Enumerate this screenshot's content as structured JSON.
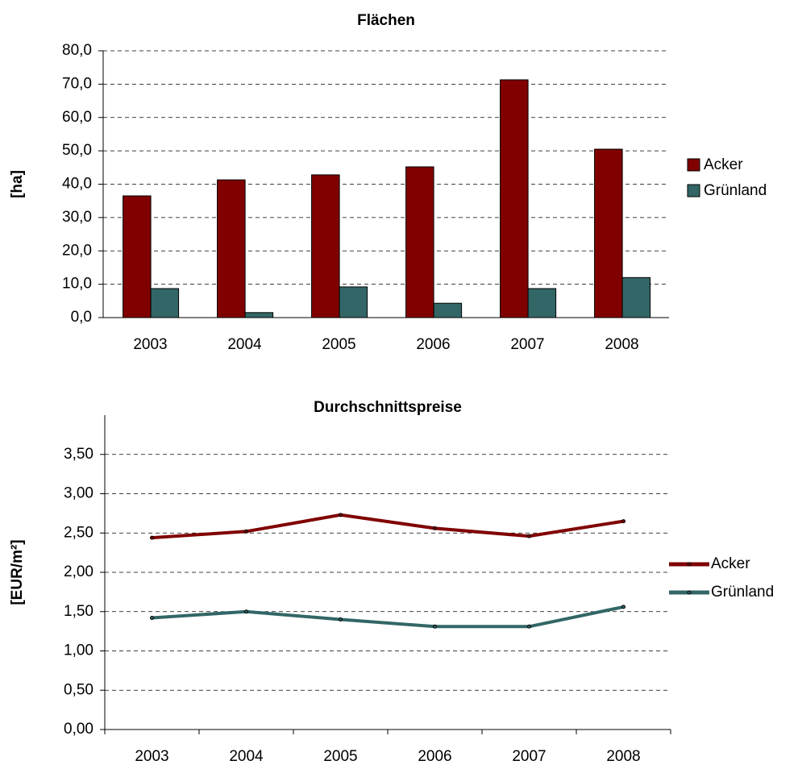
{
  "chart_data": [
    {
      "type": "bar",
      "title": "Flächen",
      "ylabel": "[ha]",
      "categories": [
        "2003",
        "2004",
        "2005",
        "2006",
        "2007",
        "2008"
      ],
      "series": [
        {
          "name": "Acker",
          "color": "#800000",
          "values": [
            36.5,
            41.3,
            42.8,
            45.2,
            71.3,
            50.5
          ]
        },
        {
          "name": "Grünland",
          "color": "#336666",
          "values": [
            8.7,
            1.5,
            9.2,
            4.3,
            8.7,
            12.0
          ]
        }
      ],
      "ylim": [
        0,
        80
      ],
      "yticks": [
        {
          "value": 0,
          "label": "0,0"
        },
        {
          "value": 10,
          "label": "10,0"
        },
        {
          "value": 20,
          "label": "20,0"
        },
        {
          "value": 30,
          "label": "30,0"
        },
        {
          "value": 40,
          "label": "40,0"
        },
        {
          "value": 50,
          "label": "50,0"
        },
        {
          "value": 60,
          "label": "60,0"
        },
        {
          "value": 70,
          "label": "70,0"
        },
        {
          "value": 80,
          "label": "80,0"
        }
      ],
      "grid": true,
      "legend": "right"
    },
    {
      "type": "line",
      "title": "Durchschnittspreise",
      "ylabel": "[EUR/m²]",
      "categories": [
        "2003",
        "2004",
        "2005",
        "2006",
        "2007",
        "2008"
      ],
      "series": [
        {
          "name": "Acker",
          "color": "#800000",
          "values": [
            2.44,
            2.52,
            2.73,
            2.56,
            2.46,
            2.65
          ]
        },
        {
          "name": "Grünland",
          "color": "#336666",
          "values": [
            1.42,
            1.5,
            1.4,
            1.31,
            1.31,
            1.56
          ]
        }
      ],
      "ylim": [
        0,
        4
      ],
      "yticks": [
        {
          "value": 0,
          "label": "0,00"
        },
        {
          "value": 0.5,
          "label": "0,50"
        },
        {
          "value": 1,
          "label": "1,00"
        },
        {
          "value": 1.5,
          "label": "1,50"
        },
        {
          "value": 2,
          "label": "2,00"
        },
        {
          "value": 2.5,
          "label": "2,50"
        },
        {
          "value": 3,
          "label": "3,00"
        },
        {
          "value": 3.5,
          "label": "3,50"
        }
      ],
      "grid": true,
      "legend": "right"
    }
  ]
}
